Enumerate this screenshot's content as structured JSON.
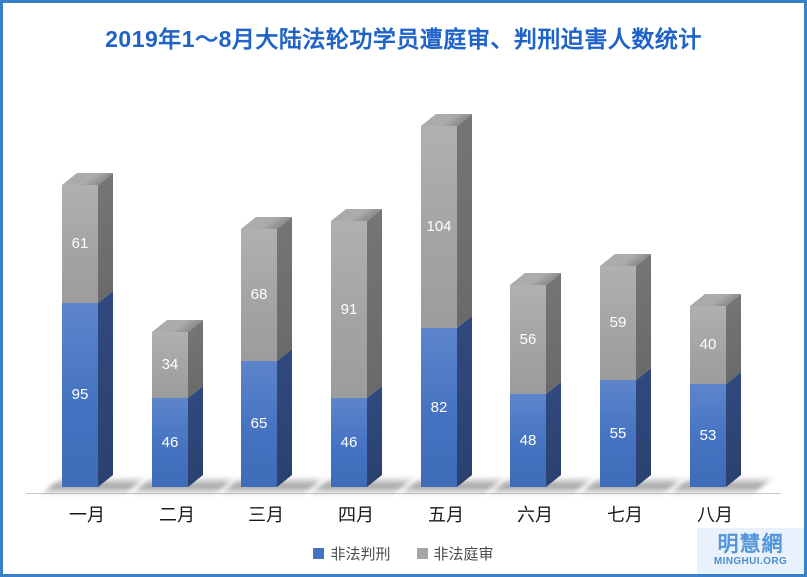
{
  "title": "2019年1～8月大陆法轮功学员遭庭审、判刑迫害人数统计",
  "chart_data": {
    "type": "bar",
    "subtype": "stacked-3d-column",
    "title": "2019年1～8月大陆法轮功学员遭庭审、判刑迫害人数统计",
    "categories": [
      "一月",
      "二月",
      "三月",
      "四月",
      "五月",
      "六月",
      "七月",
      "八月"
    ],
    "series": [
      {
        "name": "非法判刑",
        "color": "#4472c4",
        "values": [
          95,
          46,
          65,
          46,
          82,
          48,
          55,
          53
        ]
      },
      {
        "name": "非法庭审",
        "color": "#a5a5a5",
        "values": [
          61,
          34,
          68,
          91,
          104,
          56,
          59,
          40
        ]
      }
    ],
    "totals": [
      156,
      80,
      133,
      137,
      186,
      104,
      114,
      93
    ],
    "xlabel": "",
    "ylabel": "",
    "ylim": [
      0,
      200
    ],
    "grid": false,
    "legend_position": "bottom",
    "data_labels": "inside-segment-white"
  },
  "legend": {
    "items": [
      {
        "label": "非法判刑",
        "color": "#4472c4"
      },
      {
        "label": "非法庭审",
        "color": "#a5a5a5"
      }
    ]
  },
  "watermark": {
    "cn": "明慧網",
    "en": "MINGHUI.ORG"
  },
  "colors": {
    "frame_border": "#3a80c8",
    "title_text": "#1f63c8",
    "bar_blue_front": "#4472c4",
    "bar_blue_side": "#2d4374",
    "bar_gray_front": "#a5a5a5",
    "bar_gray_side": "#6e6e6e",
    "axis_line": "#c9c9c9",
    "legend_text": "#4d4d4d",
    "watermark_bg": "#e9f2fc",
    "watermark_text": "#5596d8"
  }
}
